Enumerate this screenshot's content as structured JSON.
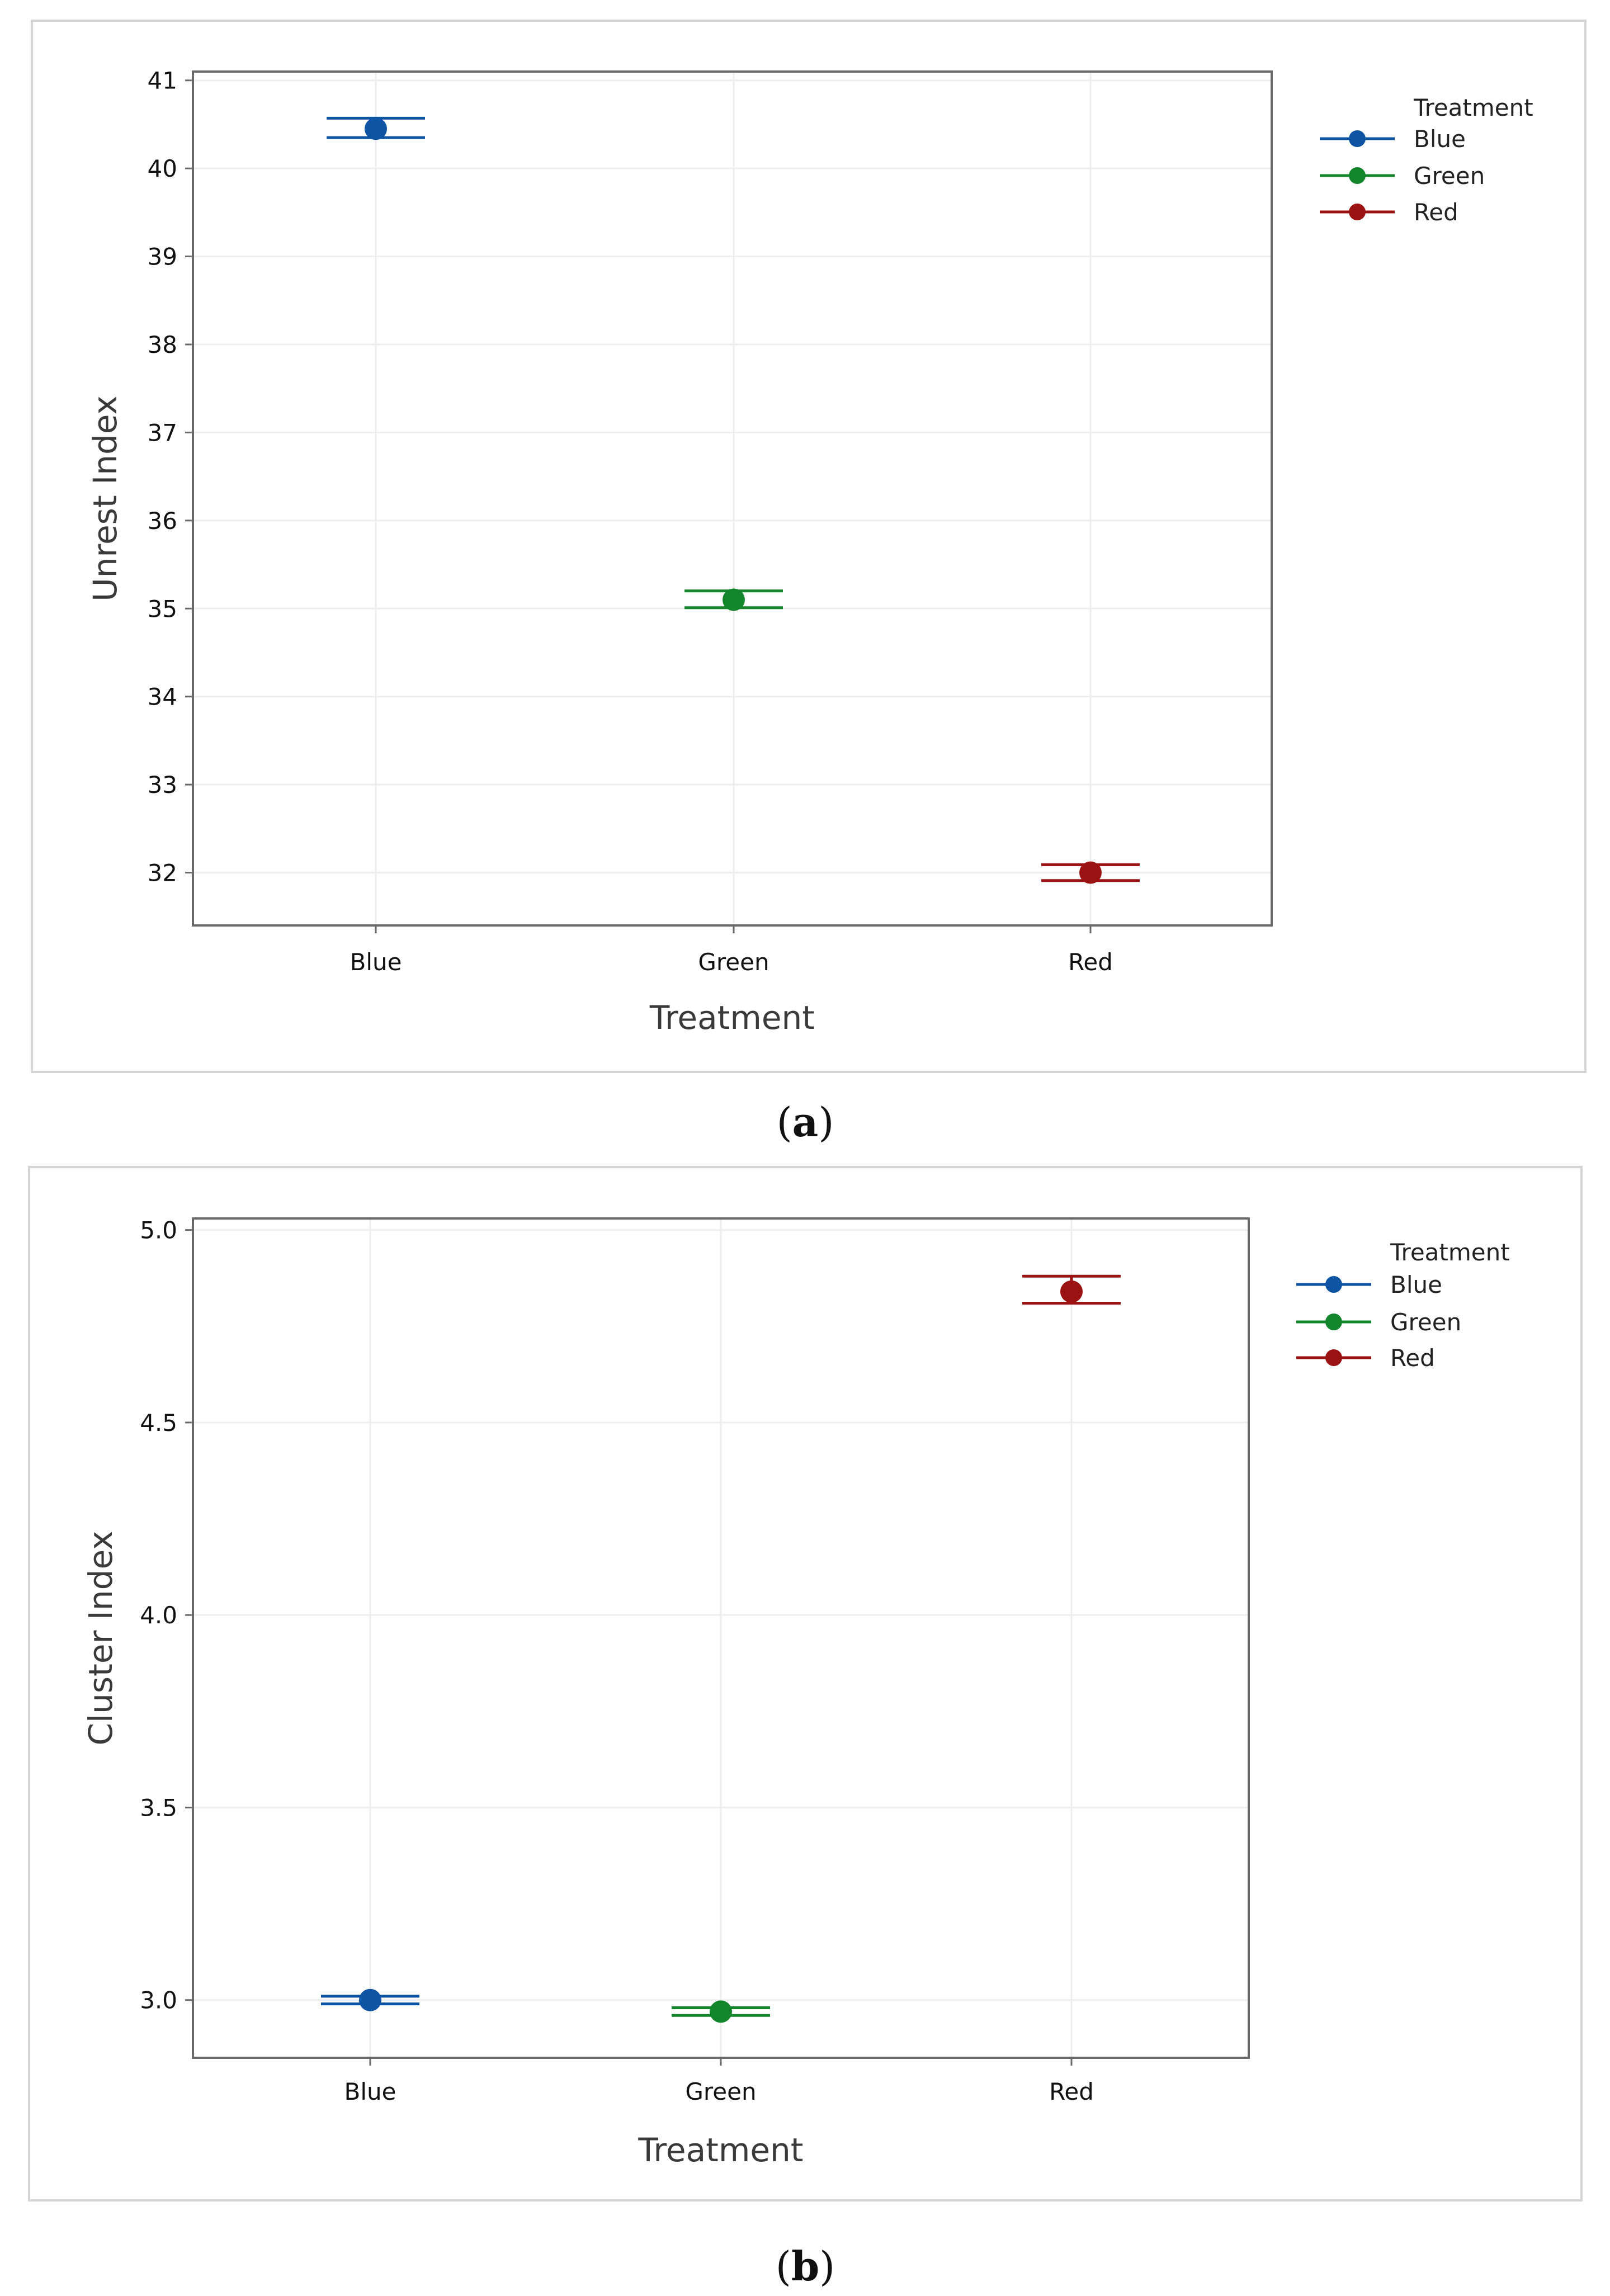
{
  "chart_data": [
    {
      "type": "scatter",
      "panel_label": "a",
      "xlabel": "Treatment",
      "ylabel": "Unrest Index",
      "categories": [
        "Blue",
        "Green",
        "Red"
      ],
      "ylim": [
        31.4,
        41.1
      ],
      "yticks": [
        32,
        33,
        34,
        35,
        36,
        37,
        38,
        39,
        40,
        41
      ],
      "ytick_labels": [
        "32",
        "33",
        "34",
        "35",
        "36",
        "37",
        "38",
        "39",
        "40",
        "41"
      ],
      "grid": true,
      "legend": {
        "title": "Treatment",
        "position": "top-right",
        "entries": [
          "Blue",
          "Green",
          "Red"
        ]
      },
      "series": [
        {
          "name": "Blue",
          "color": "#0d55a3",
          "mean": 40.45,
          "lower": 40.35,
          "upper": 40.57
        },
        {
          "name": "Green",
          "color": "#13852b",
          "mean": 35.1,
          "lower": 35.01,
          "upper": 35.2
        },
        {
          "name": "Red",
          "color": "#9b1212",
          "mean": 32.0,
          "lower": 31.91,
          "upper": 32.09
        }
      ]
    },
    {
      "type": "scatter",
      "panel_label": "b",
      "xlabel": "Treatment",
      "ylabel": "Cluster Index",
      "categories": [
        "Blue",
        "Green",
        "Red"
      ],
      "ylim": [
        2.85,
        5.03
      ],
      "yticks": [
        3.0,
        3.5,
        4.0,
        4.5,
        5.0
      ],
      "ytick_labels": [
        "3.0",
        "3.5",
        "4.0",
        "4.5",
        "5.0"
      ],
      "grid": true,
      "legend": {
        "title": "Treatment",
        "position": "top-right",
        "entries": [
          "Blue",
          "Green",
          "Red"
        ]
      },
      "series": [
        {
          "name": "Blue",
          "color": "#0d55a3",
          "mean": 3.0,
          "lower": 2.99,
          "upper": 3.01
        },
        {
          "name": "Green",
          "color": "#13852b",
          "mean": 2.97,
          "lower": 2.96,
          "upper": 2.98
        },
        {
          "name": "Red",
          "color": "#9b1212",
          "mean": 4.84,
          "lower": 4.81,
          "upper": 4.88
        }
      ]
    }
  ]
}
